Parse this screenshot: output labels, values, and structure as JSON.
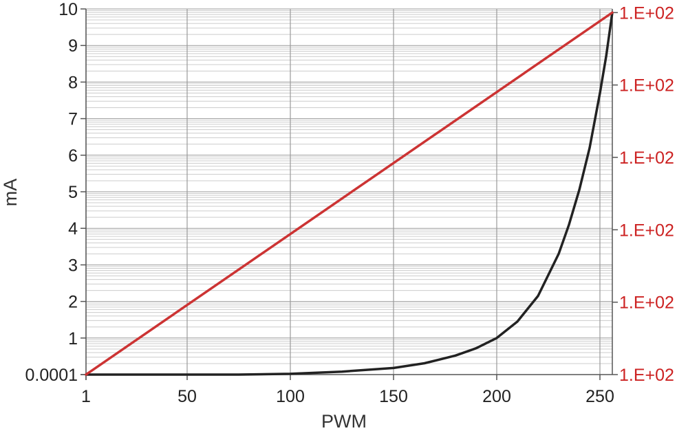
{
  "chart_data": {
    "type": "line",
    "xlabel": "PWM",
    "ylabel": "mA",
    "xlim": [
      1,
      256
    ],
    "x_ticks": [
      1,
      50,
      100,
      150,
      200,
      250
    ],
    "x_tick_labels": [
      "1",
      "50",
      "100",
      "150",
      "200",
      "250"
    ],
    "y_left_ticks": [
      0,
      1,
      2,
      3,
      4,
      5,
      6,
      7,
      8,
      9,
      10
    ],
    "y_left_tick_labels": [
      "0.0001",
      "1",
      "2",
      "3",
      "4",
      "5",
      "6",
      "7",
      "8",
      "9",
      "10"
    ],
    "y_right_tick_labels": [
      "1.E+02",
      "1.E+02",
      "1.E+02",
      "1.E+02",
      "1.E+02",
      "1.E+02"
    ],
    "grid": true,
    "series": [
      {
        "axis": "left",
        "color": "#222222",
        "x": [
          1,
          25,
          50,
          75,
          100,
          125,
          150,
          165,
          180,
          190,
          200,
          210,
          220,
          230,
          235,
          240,
          245,
          250,
          253,
          256
        ],
        "y": [
          0.0,
          0.0,
          0.0,
          0.0,
          0.02,
          0.08,
          0.18,
          0.31,
          0.52,
          0.72,
          1.0,
          1.45,
          2.15,
          3.3,
          4.1,
          5.05,
          6.2,
          7.7,
          8.7,
          9.9
        ]
      },
      {
        "axis": "right",
        "color": "#cc3333",
        "x": [
          1,
          256
        ],
        "y": [
          0.0,
          9.9
        ]
      }
    ],
    "colors": {
      "right_axis_text": "#cc2222",
      "grid_major": "#999999",
      "grid_minor": "#cccccc",
      "axis": "#555555"
    }
  }
}
